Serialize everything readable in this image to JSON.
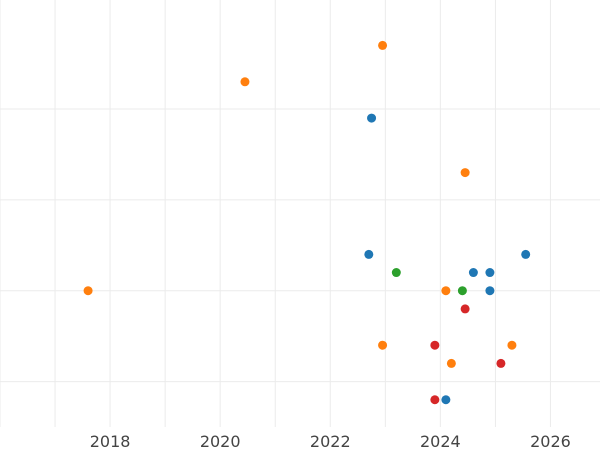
{
  "chart_data": {
    "type": "scatter",
    "title": "",
    "xlabel": "",
    "ylabel": "",
    "xlim": [
      2016.0,
      2026.9
    ],
    "ylim": [
      0.5,
      5.2
    ],
    "x_ticks": [
      2018,
      2020,
      2022,
      2024,
      2026
    ],
    "x_tick_labels": [
      "2018",
      "2020",
      "2022",
      "2024",
      "2026"
    ],
    "y_gridlines": [
      1,
      2,
      3,
      4
    ],
    "y_tick_labels": [],
    "grid": true,
    "legend": "none",
    "series": [
      {
        "color": "#1f77b4",
        "points": [
          {
            "x": 2022.75,
            "y": 3.9
          },
          {
            "x": 2022.7,
            "y": 2.4
          },
          {
            "x": 2024.6,
            "y": 2.2
          },
          {
            "x": 2024.9,
            "y": 2.2
          },
          {
            "x": 2025.55,
            "y": 2.4
          },
          {
            "x": 2024.9,
            "y": 2.0
          },
          {
            "x": 2024.1,
            "y": 0.8
          }
        ]
      },
      {
        "color": "#ff7f0e",
        "points": [
          {
            "x": 2022.95,
            "y": 4.7
          },
          {
            "x": 2020.45,
            "y": 4.3
          },
          {
            "x": 2024.45,
            "y": 3.3
          },
          {
            "x": 2017.6,
            "y": 2.0
          },
          {
            "x": 2024.1,
            "y": 2.0
          },
          {
            "x": 2022.95,
            "y": 1.4
          },
          {
            "x": 2025.3,
            "y": 1.4
          },
          {
            "x": 2024.2,
            "y": 1.2
          }
        ]
      },
      {
        "color": "#2ca02c",
        "points": [
          {
            "x": 2023.2,
            "y": 2.2
          },
          {
            "x": 2024.4,
            "y": 2.0
          }
        ]
      },
      {
        "color": "#d62728",
        "points": [
          {
            "x": 2024.45,
            "y": 1.8
          },
          {
            "x": 2023.9,
            "y": 1.4
          },
          {
            "x": 2025.1,
            "y": 1.2
          },
          {
            "x": 2023.9,
            "y": 0.8
          }
        ]
      }
    ]
  }
}
